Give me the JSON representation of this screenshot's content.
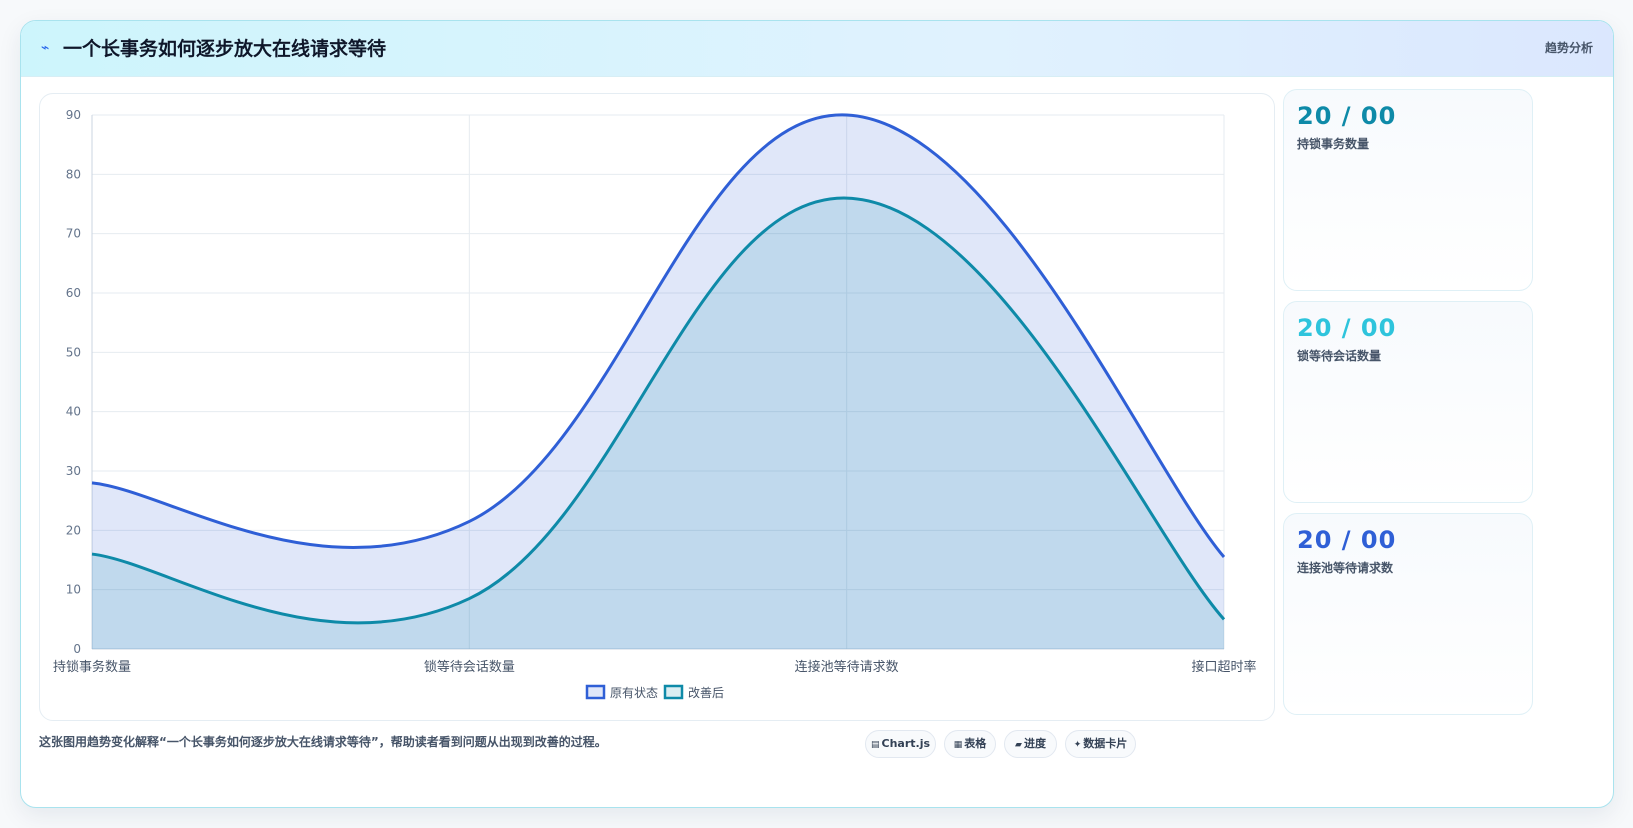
{
  "header": {
    "title": "一个长事务如何逐步放大在线请求等待",
    "badge": "趋势分析"
  },
  "chart_data": {
    "type": "area",
    "categories": [
      "持锁事务数量",
      "锁等待会话数量",
      "连接池等待请求数",
      "接口超时率"
    ],
    "series": [
      {
        "name": "原有状态",
        "values": [
          28,
          21.5,
          90,
          15.5
        ],
        "color": "#2f5fd6"
      },
      {
        "name": "改善后",
        "values": [
          16,
          8.5,
          76,
          5
        ],
        "color": "#0e8aa8"
      }
    ],
    "ylim": [
      0,
      90
    ],
    "yticks": [
      0,
      10,
      20,
      30,
      40,
      50,
      60,
      70,
      80,
      90
    ],
    "grid": true,
    "legend": "bottom"
  },
  "stats": [
    {
      "value": "20 / 00",
      "label": "持锁事务数量",
      "color": "#0e8aa8"
    },
    {
      "value": "20 / 00",
      "label": "锁等待会话数量",
      "color": "#2ec4dc"
    },
    {
      "value": "20 / 00",
      "label": "连接池等待请求数",
      "color": "#2f5fd6"
    }
  ],
  "footer": {
    "text": "这张图用趋势变化解释“一个长事务如何逐步放大在线请求等待”，帮助读者看到问题从出现到改善的过程。",
    "chips": [
      {
        "icon": "chart-icon",
        "label": "Chart.js"
      },
      {
        "icon": "table-icon",
        "label": "表格"
      },
      {
        "icon": "progress-icon",
        "label": "进度"
      },
      {
        "icon": "card-icon",
        "label": "数据卡片"
      }
    ]
  }
}
